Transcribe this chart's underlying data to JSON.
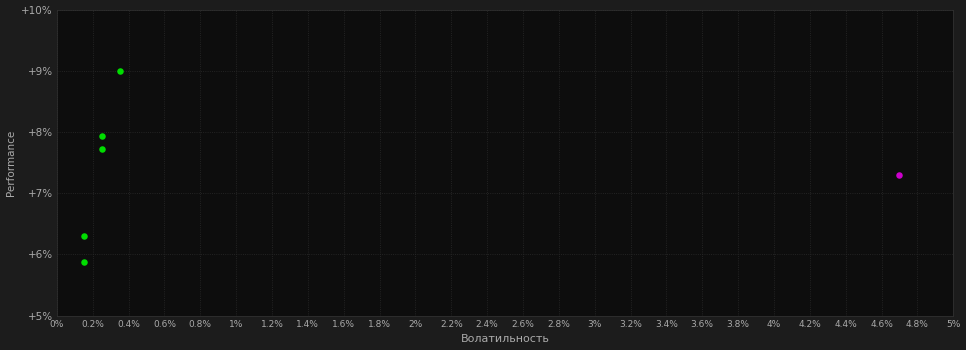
{
  "background_color": "#1c1c1c",
  "plot_bg_color": "#0d0d0d",
  "text_color": "#aaaaaa",
  "xlabel": "Волатильность",
  "ylabel": "Performance",
  "xlim": [
    0,
    0.05
  ],
  "ylim": [
    0.05,
    0.1
  ],
  "xticks": [
    0.0,
    0.002,
    0.004,
    0.006,
    0.008,
    0.01,
    0.012,
    0.014,
    0.016,
    0.018,
    0.02,
    0.022,
    0.024,
    0.026,
    0.028,
    0.03,
    0.032,
    0.034,
    0.036,
    0.038,
    0.04,
    0.042,
    0.044,
    0.046,
    0.048,
    0.05
  ],
  "xtick_labels": [
    "0%",
    "0.2%",
    "0.4%",
    "0.6%",
    "0.8%",
    "1%",
    "1.2%",
    "1.4%",
    "1.6%",
    "1.8%",
    "2%",
    "2.2%",
    "2.4%",
    "2.6%",
    "2.8%",
    "3%",
    "3.2%",
    "3.4%",
    "3.6%",
    "3.8%",
    "4%",
    "4.2%",
    "4.4%",
    "4.6%",
    "4.8%",
    "5%"
  ],
  "yticks": [
    0.05,
    0.06,
    0.07,
    0.08,
    0.09,
    0.1
  ],
  "ytick_labels": [
    "+5%",
    "+6%",
    "+7%",
    "+8%",
    "+9%",
    "+10%"
  ],
  "green_points": [
    [
      0.0035,
      0.09
    ],
    [
      0.0025,
      0.0793
    ],
    [
      0.0025,
      0.0772
    ],
    [
      0.0015,
      0.063
    ],
    [
      0.0015,
      0.0588
    ]
  ],
  "magenta_points": [
    [
      0.047,
      0.073
    ]
  ],
  "green_color": "#00dd00",
  "magenta_color": "#cc00cc",
  "point_size": 22,
  "figsize": [
    9.66,
    3.5
  ],
  "dpi": 100
}
